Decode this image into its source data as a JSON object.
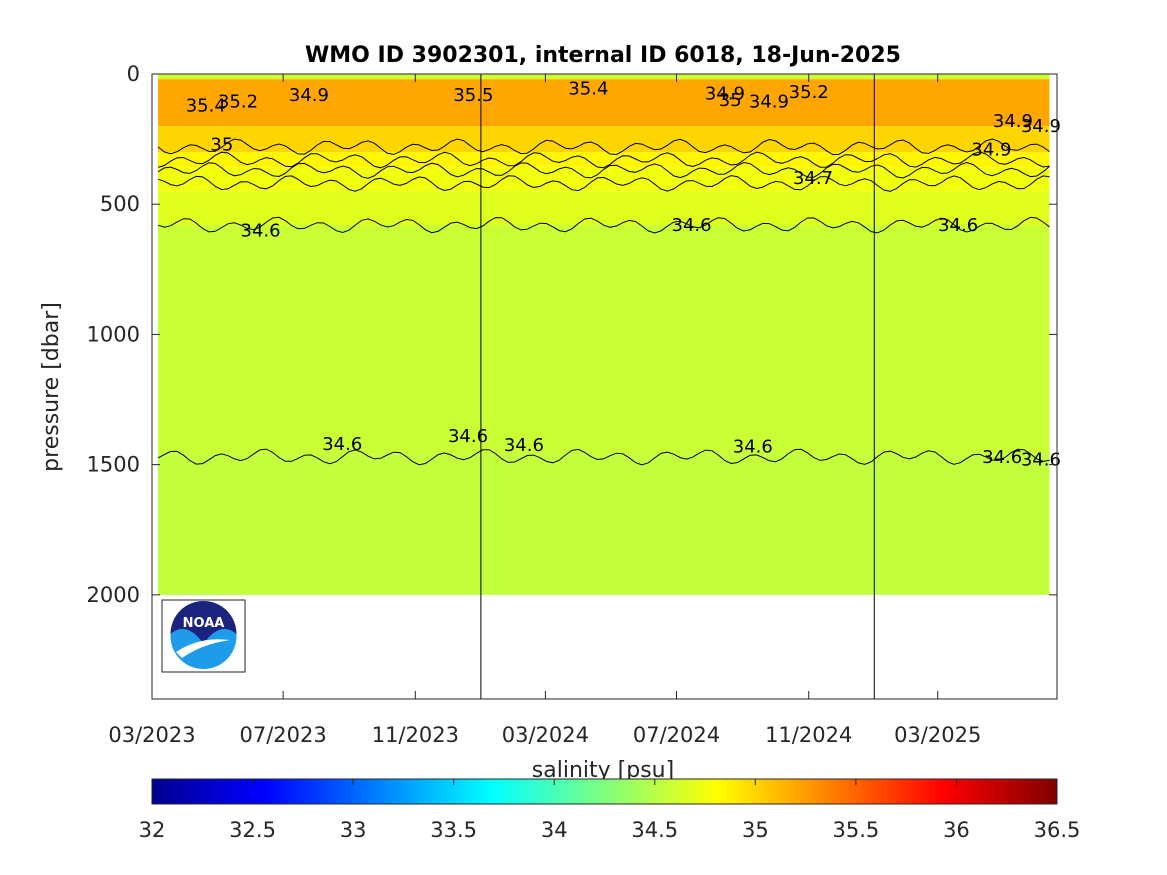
{
  "chart_data": {
    "type": "heatmap",
    "title": "WMO ID 3902301, internal ID 6018, 18-Jun-2025",
    "ylabel": "pressure [dbar]",
    "colorbar_label": "salinity [psu]",
    "x_range": [
      "2023-03-01",
      "2025-06-20"
    ],
    "x_ticks": [
      "03/2023",
      "07/2023",
      "11/2023",
      "03/2024",
      "07/2024",
      "11/2024",
      "03/2025"
    ],
    "ylim": [
      0,
      2400
    ],
    "y_reversed": true,
    "y_ticks": [
      "0",
      "500",
      "1000",
      "1500",
      "2000"
    ],
    "y_tick_values": [
      0,
      500,
      1000,
      1500,
      2000
    ],
    "colorbar": {
      "range": [
        32,
        36.5
      ],
      "ticks": [
        "32",
        "32.5",
        "33",
        "33.5",
        "34",
        "34.5",
        "35",
        "35.5",
        "36",
        "36.5"
      ],
      "colormap": "jet"
    },
    "data_bottom_pressure": 2000,
    "year_boundaries": [
      "2024-01-01",
      "2025-01-01"
    ],
    "layers": [
      {
        "pressure_range": [
          0,
          20
        ],
        "salinity": 34.6
      },
      {
        "pressure_range": [
          20,
          200
        ],
        "salinity": 35.2
      },
      {
        "pressure_range": [
          200,
          300
        ],
        "salinity": 35.0
      },
      {
        "pressure_range": [
          300,
          360
        ],
        "salinity": 34.85
      },
      {
        "pressure_range": [
          360,
          450
        ],
        "salinity": 34.75
      },
      {
        "pressure_range": [
          450,
          580
        ],
        "salinity": 34.68
      },
      {
        "pressure_range": [
          580,
          1460
        ],
        "salinity": 34.58
      },
      {
        "pressure_range": [
          1460,
          2000
        ],
        "salinity": 34.55
      }
    ],
    "contours": [
      {
        "level": 35.0,
        "pressure": 280
      },
      {
        "level": 34.9,
        "pressure": 330
      },
      {
        "level": 34.8,
        "pressure": 370
      },
      {
        "level": 34.7,
        "pressure": 420
      },
      {
        "level": 34.6,
        "pressure": 580
      },
      {
        "level": 34.6,
        "pressure": 1470
      }
    ],
    "contour_labels": [
      {
        "text": "35.4",
        "date": "2023-04-20",
        "pressure": 120
      },
      {
        "text": "35.2",
        "date": "2023-05-20",
        "pressure": 105
      },
      {
        "text": "35",
        "date": "2023-05-05",
        "pressure": 270
      },
      {
        "text": "34.9",
        "date": "2023-07-25",
        "pressure": 80
      },
      {
        "text": "35.5",
        "date": "2023-12-25",
        "pressure": 80
      },
      {
        "text": "35.4",
        "date": "2024-04-10",
        "pressure": 55
      },
      {
        "text": "34.9",
        "date": "2024-08-15",
        "pressure": 75
      },
      {
        "text": "35",
        "date": "2024-08-20",
        "pressure": 100
      },
      {
        "text": "34.9",
        "date": "2024-09-25",
        "pressure": 105
      },
      {
        "text": "35.2",
        "date": "2024-11-01",
        "pressure": 70
      },
      {
        "text": "34.7",
        "date": "2024-11-05",
        "pressure": 400
      },
      {
        "text": "34.9",
        "date": "2025-04-20",
        "pressure": 290
      },
      {
        "text": "34.9",
        "date": "2025-05-10",
        "pressure": 180
      },
      {
        "text": "34.9",
        "date": "2025-06-05",
        "pressure": 200
      },
      {
        "text": "34.6",
        "date": "2023-06-10",
        "pressure": 600
      },
      {
        "text": "34.6",
        "date": "2024-07-15",
        "pressure": 580
      },
      {
        "text": "34.6",
        "date": "2025-03-20",
        "pressure": 580
      },
      {
        "text": "34.6",
        "date": "2023-08-25",
        "pressure": 1420
      },
      {
        "text": "34.6",
        "date": "2023-12-20",
        "pressure": 1390
      },
      {
        "text": "34.6",
        "date": "2024-02-10",
        "pressure": 1425
      },
      {
        "text": "34.6",
        "date": "2024-09-10",
        "pressure": 1430
      },
      {
        "text": "34.6",
        "date": "2025-04-30",
        "pressure": 1470
      },
      {
        "text": "34.6",
        "date": "2025-06-05",
        "pressure": 1480
      }
    ]
  },
  "logo": {
    "text": "NOAA",
    "primary_color": "#1a237e",
    "secondary_color": "#1e9be9"
  }
}
